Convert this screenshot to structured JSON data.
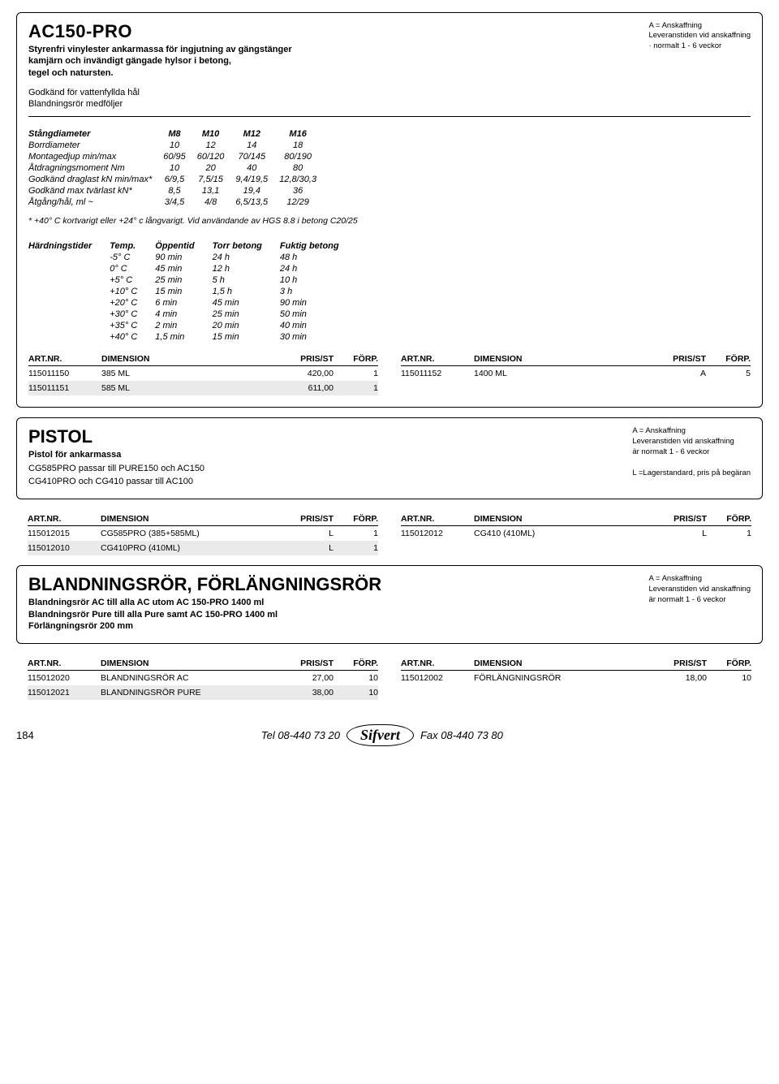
{
  "ac150": {
    "title": "AC150-PRO",
    "subtitle_l1": "Styrenfri vinylester ankarmassa för ingjutning av gängstänger",
    "subtitle_l2": "kamjärn och invändigt gängade hylsor  i betong,",
    "subtitle_l3": "tegel och natursten.",
    "approved_l1": "Godkänd för vattenfyllda hål",
    "approved_l2": "Blandningsrör medföljer",
    "note_l1": "A = Anskaffning",
    "note_l2": "Leveranstiden vid anskaffning",
    "note_l3": "· normalt 1 - 6 veckor",
    "spec_head": [
      "Stångdiameter",
      "M8",
      "M10",
      "M12",
      "M16"
    ],
    "spec_rows": [
      [
        "Borrdiameter",
        "10",
        "12",
        "14",
        "18"
      ],
      [
        "Montagedjup min/max",
        "60/95",
        "60/120",
        "70/145",
        "80/190"
      ],
      [
        "Åtdragningsmoment Nm",
        "10",
        "20",
        "40",
        "80"
      ],
      [
        "Godkänd draglast kN min/max*",
        "6/9,5",
        "7,5/15",
        "9,4/19,5",
        "12,8/30,3"
      ],
      [
        "Godkänd max tvärlast kN*",
        "8,5",
        "13,1",
        "19,4",
        "36"
      ],
      [
        "Åtgång/hål, ml  ~",
        "3/4,5",
        "4/8",
        "6,5/13,5",
        "12/29"
      ]
    ],
    "footnote": "* +40° C kortvarigt eller +24° c långvarigt. Vid användande av HGS 8.8 i betong C20/25",
    "hard_head": [
      "Härdningstider",
      "Temp.",
      "Öppentid",
      "Torr betong",
      "Fuktig betong"
    ],
    "hard_rows": [
      [
        "",
        "-5° C",
        "90 min",
        "24 h",
        "48 h"
      ],
      [
        "",
        "0° C",
        "45 min",
        "12 h",
        "24 h"
      ],
      [
        "",
        "+5° C",
        "25 min",
        "5 h",
        "10 h"
      ],
      [
        "",
        "+10° C",
        "15 min",
        "1,5 h",
        "3 h"
      ],
      [
        "",
        "+20° C",
        "6 min",
        "45 min",
        "90 min"
      ],
      [
        "",
        "+30° C",
        "4 min",
        "25 min",
        "50 min"
      ],
      [
        "",
        "+35° C",
        "2 min",
        "20 min",
        "40 min"
      ],
      [
        "",
        "+40° C",
        "1,5 min",
        "15 min",
        "30 min"
      ]
    ]
  },
  "price_headers": {
    "art": "ART.NR.",
    "dim": "DIMENSION",
    "pris": "PRIS/ST",
    "forp": "FÖRP."
  },
  "ac150_prices_left": [
    {
      "art": "115011150",
      "dim": "385 ML",
      "pris": "420,00",
      "forp": "1"
    },
    {
      "art": "115011151",
      "dim": "585 ML",
      "pris": "611,00",
      "forp": "1"
    }
  ],
  "ac150_prices_right": [
    {
      "art": "115011152",
      "dim": "1400 ML",
      "pris": "A",
      "forp": "5"
    }
  ],
  "pistol": {
    "title": "PISTOL",
    "subtitle": "Pistol för ankarmassa",
    "line1": "CG585PRO passar till PURE150 och AC150",
    "line2": "CG410PRO och CG410 passar till AC100",
    "note_l1": "A = Anskaffning",
    "note_l2": "Leveranstiden vid anskaffning",
    "note_l3": "är normalt 1 - 6 veckor",
    "note_l4": "L =Lagerstandard, pris på begäran"
  },
  "pistol_left": [
    {
      "art": "115012015",
      "dim": "CG585PRO (385+585ML)",
      "pris": "L",
      "forp": "1"
    },
    {
      "art": "115012010",
      "dim": "CG410PRO (410ML)",
      "pris": "L",
      "forp": "1"
    }
  ],
  "pistol_right": [
    {
      "art": "115012012",
      "dim": "CG410 (410ML)",
      "pris": "L",
      "forp": "1"
    }
  ],
  "bland": {
    "title": "BLANDNINGSRÖR, FÖRLÄNGNINGSRÖR",
    "l1": "Blandningsrör AC  till alla AC utom AC 150-PRO 1400 ml",
    "l2": "Blandningsrör  Pure till alla Pure samt  AC 150-PRO 1400 ml",
    "l3": "Förlängningsrör 200 mm",
    "note_l1": "A = Anskaffning",
    "note_l2": "Leveranstiden vid anskaffning",
    "note_l3": "är normalt 1 - 6 veckor"
  },
  "bland_left": [
    {
      "art": "115012020",
      "dim": "BLANDNINGSRÖR AC",
      "pris": "27,00",
      "forp": "10"
    },
    {
      "art": "115012021",
      "dim": "BLANDNINGSRÖR PURE",
      "pris": "38,00",
      "forp": "10"
    }
  ],
  "bland_right": [
    {
      "art": "115012002",
      "dim": "FÖRLÄNGNINGSRÖR",
      "pris": "18,00",
      "forp": "10"
    }
  ],
  "footer": {
    "page": "184",
    "tel": "Tel 08-440 73 20",
    "logo": "Sifvert",
    "fax": "Fax 08-440 73 80"
  }
}
